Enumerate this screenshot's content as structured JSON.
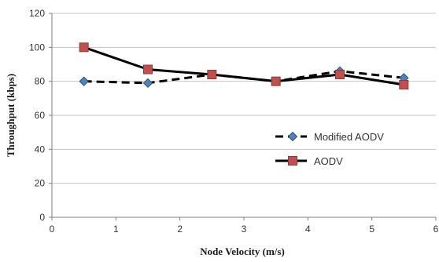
{
  "chart_data": {
    "type": "line",
    "title": "",
    "xlabel": "Node Velocity (m/s)",
    "ylabel": "Throughput (kbps)",
    "xlim": [
      0,
      6
    ],
    "ylim": [
      0,
      120
    ],
    "x_ticks": [
      "0",
      "1",
      "2",
      "3",
      "4",
      "5",
      "6"
    ],
    "y_ticks": [
      "0",
      "20",
      "40",
      "60",
      "80",
      "100",
      "120"
    ],
    "grid": "horizontal",
    "legend_position": "right",
    "x": [
      0.5,
      1.5,
      2.5,
      3.5,
      4.5,
      5.5
    ],
    "series": [
      {
        "name": "Modified AODV",
        "values": [
          80,
          79,
          84,
          80,
          86,
          82
        ],
        "line_style": "dashed",
        "marker": "diamond",
        "marker_color": "#4f81bd",
        "line_color": "#000000"
      },
      {
        "name": "AODV",
        "values": [
          100,
          87,
          84,
          80,
          84,
          78
        ],
        "line_style": "solid",
        "marker": "square",
        "marker_color": "#c0504d",
        "line_color": "#000000"
      }
    ]
  }
}
